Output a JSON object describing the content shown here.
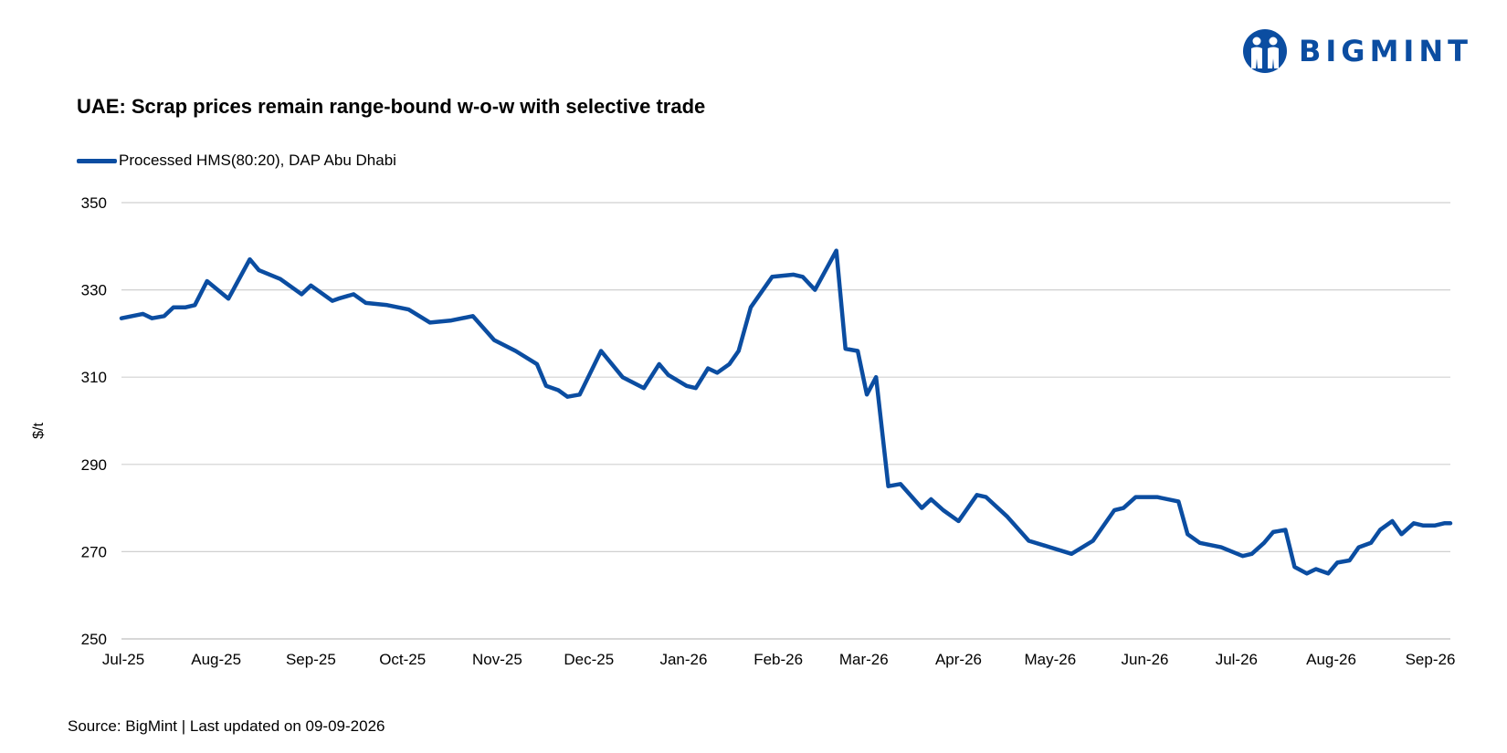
{
  "brand": {
    "name": "BIGMINT",
    "color": "#0b4da1"
  },
  "source_text": "Source: BigMint | Last updated on 09-09-2026",
  "chart_data": {
    "type": "line",
    "title": "UAE: Scrap prices remain range-bound w-o-w with selective trade",
    "xlabel": "",
    "ylabel": "$/t",
    "ylim": [
      250,
      350
    ],
    "yticks": [
      250,
      270,
      290,
      310,
      330,
      350
    ],
    "grid": true,
    "legend_position": "top-left",
    "x_tick_labels": [
      "Jul-25",
      "Aug-25",
      "Sep-25",
      "Oct-25",
      "Nov-25",
      "Dec-25",
      "Jan-26",
      "Feb-26",
      "Mar-26",
      "Apr-26",
      "May-26",
      "Jun-26",
      "Jul-26",
      "Aug-26",
      "Sep-26"
    ],
    "series": [
      {
        "name": "Processed HMS(80:20), DAP Abu Dhabi",
        "color": "#0b4da1",
        "x": [
          "2025-07-01",
          "2025-07-08",
          "2025-07-11",
          "2025-07-15",
          "2025-07-18",
          "2025-07-22",
          "2025-07-25",
          "2025-07-29",
          "2025-08-05",
          "2025-08-12",
          "2025-08-15",
          "2025-08-22",
          "2025-08-29",
          "2025-09-01",
          "2025-09-08",
          "2025-09-10",
          "2025-09-15",
          "2025-09-19",
          "2025-09-26",
          "2025-10-03",
          "2025-10-10",
          "2025-10-17",
          "2025-10-24",
          "2025-10-31",
          "2025-11-07",
          "2025-11-14",
          "2025-11-17",
          "2025-11-21",
          "2025-11-24",
          "2025-11-28",
          "2025-12-05",
          "2025-12-12",
          "2025-12-19",
          "2025-12-24",
          "2025-12-27",
          "2026-01-02",
          "2026-01-05",
          "2026-01-09",
          "2026-01-12",
          "2026-01-16",
          "2026-01-19",
          "2026-01-23",
          "2026-01-30",
          "2026-02-06",
          "2026-02-09",
          "2026-02-13",
          "2026-02-20",
          "2026-02-23",
          "2026-02-27",
          "2026-03-02",
          "2026-03-05",
          "2026-03-09",
          "2026-03-13",
          "2026-03-20",
          "2026-03-23",
          "2026-03-27",
          "2026-04-01",
          "2026-04-07",
          "2026-04-10",
          "2026-04-17",
          "2026-04-24",
          "2026-05-01",
          "2026-05-08",
          "2026-05-15",
          "2026-05-22",
          "2026-05-25",
          "2026-05-29",
          "2026-06-05",
          "2026-06-12",
          "2026-06-15",
          "2026-06-19",
          "2026-06-26",
          "2026-07-03",
          "2026-07-06",
          "2026-07-10",
          "2026-07-13",
          "2026-07-17",
          "2026-07-20",
          "2026-07-24",
          "2026-07-27",
          "2026-07-31",
          "2026-08-03",
          "2026-08-07",
          "2026-08-10",
          "2026-08-14",
          "2026-08-17",
          "2026-08-21",
          "2026-08-24",
          "2026-08-28",
          "2026-08-31",
          "2026-09-04",
          "2026-09-07",
          "2026-09-09"
        ],
        "values": [
          323.5,
          324.5,
          323.5,
          324,
          326,
          326,
          326.5,
          332,
          328,
          337,
          334.5,
          332.5,
          329,
          331,
          327.5,
          328,
          329,
          327,
          326.5,
          325.5,
          322.5,
          323,
          324,
          318.5,
          316,
          313,
          308,
          307,
          305.5,
          306,
          316,
          310,
          307.5,
          313,
          310.5,
          308,
          307.5,
          312,
          311,
          313,
          316,
          326,
          333,
          333.5,
          333,
          330,
          339,
          316.5,
          316,
          306,
          310,
          285,
          285.5,
          280,
          282,
          279.5,
          277,
          283,
          282.5,
          278,
          272.5,
          271,
          269.5,
          272.5,
          279.5,
          280,
          282.5,
          282.5,
          281.5,
          274,
          272,
          271,
          269,
          269.5,
          272,
          274.5,
          275,
          266.5,
          265,
          266,
          265,
          267.5,
          268,
          271,
          272,
          275,
          277,
          274,
          276.5,
          276,
          276,
          276.5,
          276.5
        ]
      }
    ]
  }
}
